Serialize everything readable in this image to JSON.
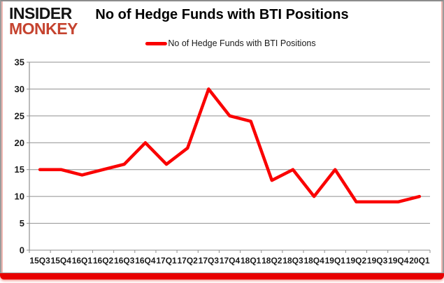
{
  "logo": {
    "line1": "INSIDER",
    "line2": "MONKEY"
  },
  "header": {
    "title": "No of Hedge Funds with BTI Positions"
  },
  "legend": {
    "label": "No of Hedge Funds with BTI Positions"
  },
  "colors": {
    "line_red": "#fa0000",
    "logo_red": "#c5432f",
    "bottom_bar_red": "#e80000",
    "grid_gray": "#8f8f8f",
    "axis_label_color": "#1a1a1a"
  },
  "chart_data": {
    "type": "line",
    "title": "No of Hedge Funds with BTI Positions",
    "categories": [
      "15Q3",
      "15Q4",
      "16Q1",
      "16Q2",
      "16Q3",
      "16Q4",
      "17Q1",
      "17Q2",
      "17Q3",
      "17Q4",
      "18Q1",
      "18Q2",
      "18Q3",
      "18Q4",
      "19Q1",
      "19Q2",
      "19Q3",
      "19Q4",
      "20Q1"
    ],
    "series": [
      {
        "name": "No of Hedge Funds with BTI Positions",
        "color": "#fa0000",
        "values": [
          15,
          15,
          14,
          15,
          16,
          20,
          16,
          19,
          30,
          25,
          24,
          13,
          15,
          10,
          15,
          9,
          9,
          9,
          10
        ]
      }
    ],
    "xlabel": "",
    "ylabel": "",
    "ylim": [
      0,
      35
    ],
    "ytick_interval": 5,
    "grid": true,
    "legend_position": "top-center"
  }
}
